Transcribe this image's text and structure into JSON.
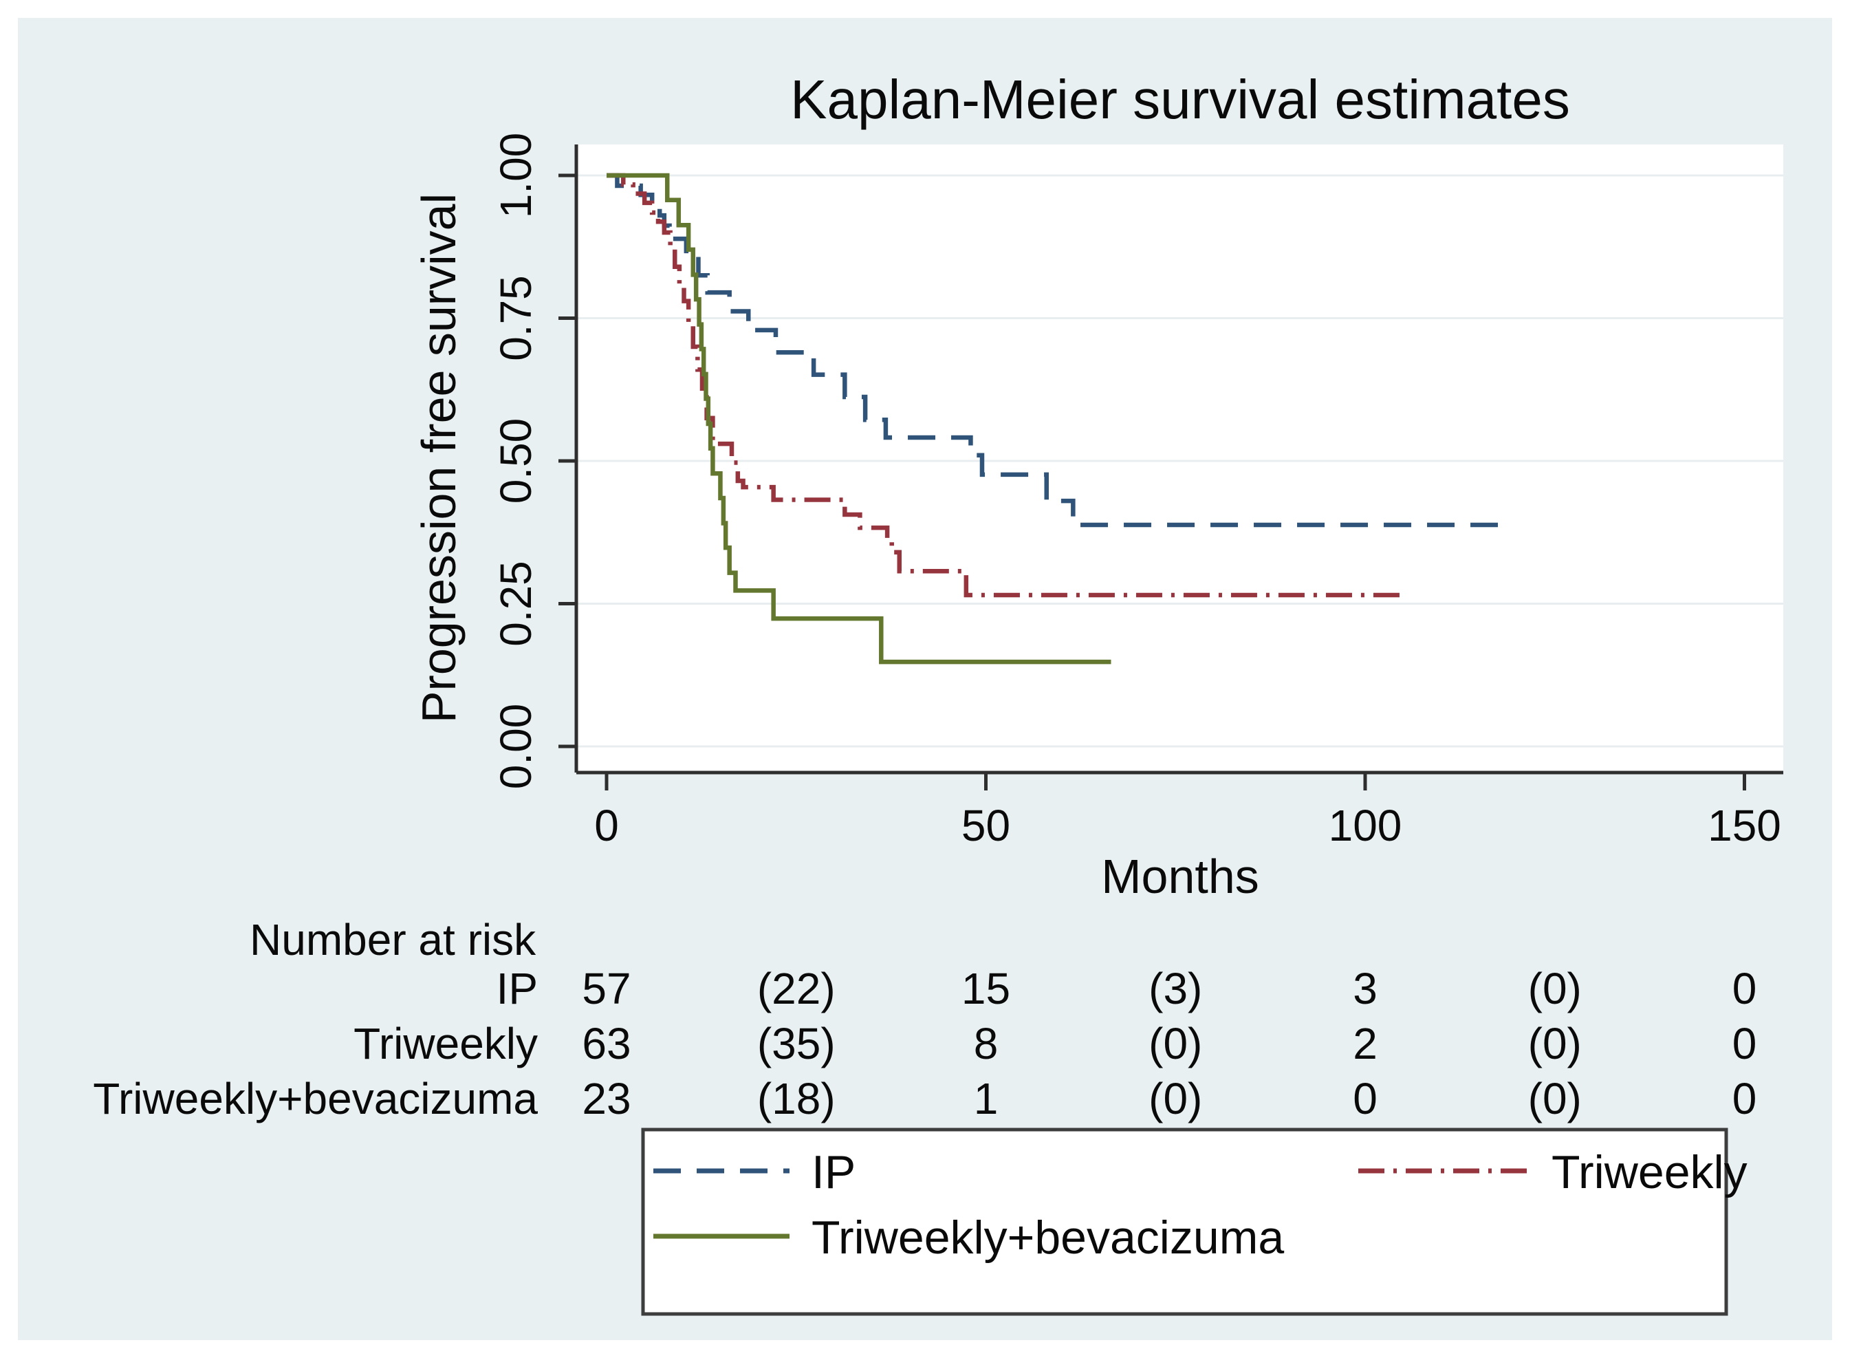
{
  "figure": {
    "background_color": "#e9f0f2",
    "plot_background": "#ffffff",
    "axis_color": "#2e2e2e",
    "grid_color": "#e8eef0",
    "legend_border_color": "#3d3d3d",
    "title_color": "#22305a"
  },
  "chart_data": {
    "type": "line",
    "subtype": "kaplan-meier-step",
    "title": "Kaplan-Meier survival estimates",
    "xlabel": "Months",
    "ylabel": "Progression free survival",
    "xlim": [
      0,
      155
    ],
    "ylim": [
      0,
      1
    ],
    "x_ticks": [
      0,
      50,
      100,
      150
    ],
    "y_ticks": [
      {
        "v": 1.0,
        "label": "1.00"
      },
      {
        "v": 0.75,
        "label": "0.75"
      },
      {
        "v": 0.5,
        "label": "0.50"
      },
      {
        "v": 0.25,
        "label": "0.25"
      },
      {
        "v": 0.0,
        "label": "0.00"
      }
    ],
    "grid": true,
    "legend_position": "bottom-box",
    "series": [
      {
        "name": "IP",
        "color": "#2f5379",
        "line_style": "dashed",
        "start_value": 1.0,
        "end_time": 119.5,
        "steps": [
          [
            1.4,
            0.982
          ],
          [
            4.5,
            0.966
          ],
          [
            6,
            0.947
          ],
          [
            7,
            0.93
          ],
          [
            7.6,
            0.912
          ],
          [
            8.3,
            0.889
          ],
          [
            10.5,
            0.859
          ],
          [
            12.1,
            0.825
          ],
          [
            13.3,
            0.795
          ],
          [
            16.2,
            0.762
          ],
          [
            18.7,
            0.729
          ],
          [
            22.3,
            0.69
          ],
          [
            27.3,
            0.651
          ],
          [
            31.4,
            0.612
          ],
          [
            34.1,
            0.572
          ],
          [
            36.8,
            0.541
          ],
          [
            48,
            0.51
          ],
          [
            49.5,
            0.476
          ],
          [
            58,
            0.43
          ],
          [
            61.5,
            0.388
          ]
        ]
      },
      {
        "name": "Triweekly",
        "color": "#97353f",
        "line_style": "dash-dot",
        "start_value": 1.0,
        "end_time": 105,
        "steps": [
          [
            2.2,
            0.984
          ],
          [
            3.5,
            0.968
          ],
          [
            5,
            0.952
          ],
          [
            6,
            0.935
          ],
          [
            6.8,
            0.919
          ],
          [
            7.6,
            0.9
          ],
          [
            8.4,
            0.871
          ],
          [
            9,
            0.84
          ],
          [
            9.6,
            0.81
          ],
          [
            10.2,
            0.78
          ],
          [
            10.8,
            0.74
          ],
          [
            11.4,
            0.7
          ],
          [
            12,
            0.66
          ],
          [
            12.6,
            0.62
          ],
          [
            13.2,
            0.575
          ],
          [
            14,
            0.53
          ],
          [
            16.5,
            0.497
          ],
          [
            17.3,
            0.465
          ],
          [
            18,
            0.454
          ],
          [
            22,
            0.432
          ],
          [
            31.4,
            0.406
          ],
          [
            33.4,
            0.383
          ],
          [
            37,
            0.361
          ],
          [
            37.6,
            0.34
          ],
          [
            38.6,
            0.307
          ],
          [
            47.4,
            0.265
          ]
        ]
      },
      {
        "name": "Triweekly+bevacizuma",
        "color": "#64772e",
        "line_style": "solid",
        "start_value": 1.0,
        "end_time": 66.5,
        "steps": [
          [
            8,
            0.957
          ],
          [
            9.5,
            0.913
          ],
          [
            10.8,
            0.87
          ],
          [
            11.4,
            0.826
          ],
          [
            11.8,
            0.783
          ],
          [
            12.2,
            0.739
          ],
          [
            12.5,
            0.696
          ],
          [
            12.8,
            0.652
          ],
          [
            13.1,
            0.609
          ],
          [
            13.4,
            0.565
          ],
          [
            13.7,
            0.522
          ],
          [
            14,
            0.478
          ],
          [
            15,
            0.435
          ],
          [
            15.4,
            0.391
          ],
          [
            15.7,
            0.348
          ],
          [
            16.2,
            0.304
          ],
          [
            17,
            0.273
          ],
          [
            22,
            0.224
          ],
          [
            36.2,
            0.148
          ]
        ]
      }
    ]
  },
  "risk_table": {
    "header": "Number at risk",
    "time_points": [
      0,
      25,
      50,
      75,
      100,
      125,
      150
    ],
    "rows": [
      {
        "label": "IP",
        "values": [
          "57",
          "(22)",
          "15",
          "(3)",
          "3",
          "(0)",
          "0"
        ]
      },
      {
        "label": "Triweekly",
        "values": [
          "63",
          "(35)",
          "8",
          "(0)",
          "2",
          "(0)",
          "0"
        ]
      },
      {
        "label": "Triweekly+bevacizuma",
        "values": [
          "23",
          "(18)",
          "1",
          "(0)",
          "0",
          "(0)",
          "0"
        ]
      }
    ]
  },
  "legend": {
    "items": [
      {
        "label": "IP",
        "series_index": 0
      },
      {
        "label": "Triweekly",
        "series_index": 1
      },
      {
        "label": "Triweekly+bevacizuma",
        "series_index": 2
      }
    ]
  }
}
